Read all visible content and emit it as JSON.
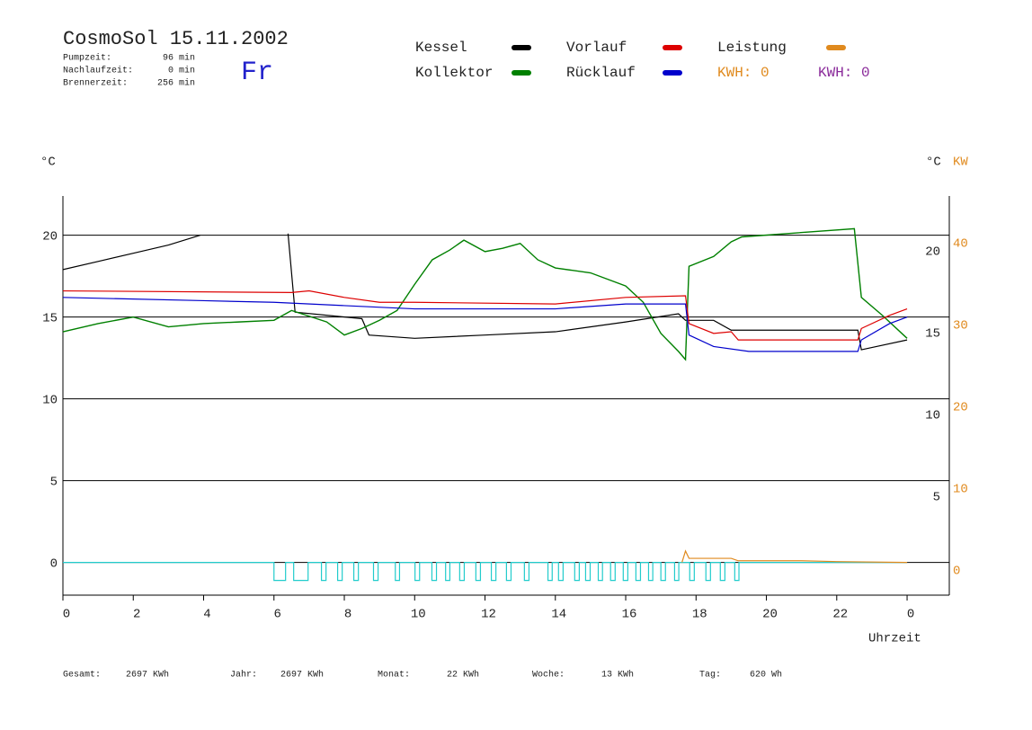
{
  "chart_data": {
    "type": "line",
    "title": "CosmoSol 15.11.2002",
    "day": "Fr",
    "stats": [
      {
        "label": "Pumpzeit:",
        "value": "96 min"
      },
      {
        "label": "Nachlaufzeit:",
        "value": "0 min"
      },
      {
        "label": "Brennerzeit:",
        "value": "256 min"
      }
    ],
    "y_unit": "°C",
    "y_unit_right": "°C",
    "y2_unit": "KW",
    "xlabel": "Uhrzeit",
    "xlim": [
      0,
      25.2
    ],
    "xticks": [
      0,
      2,
      4,
      6,
      8,
      10,
      12,
      14,
      16,
      18,
      20,
      22,
      {
        "value": 24,
        "label": "0"
      }
    ],
    "ylim": [
      -2,
      22.4
    ],
    "yticks": [
      0,
      5,
      10,
      15,
      20
    ],
    "yticks_right": [
      5,
      10,
      15,
      20
    ],
    "y2lim": [
      -4,
      44.8
    ],
    "y2ticks": [
      0,
      10,
      20,
      30,
      40
    ],
    "y2_color": "#e08a1e",
    "grid": true,
    "series": [
      {
        "name": "Kessel",
        "color": "#000000",
        "x": [
          0,
          1,
          2,
          3,
          3.9,
          5,
          6.4,
          6.6,
          8.5,
          8.7,
          10,
          12,
          14,
          16,
          17.5,
          17.7,
          18.5,
          19,
          22.6,
          22.7,
          24
        ],
        "values": [
          17.9,
          18.4,
          18.9,
          19.4,
          20.0,
          null,
          20.1,
          15.3,
          14.9,
          13.9,
          13.7,
          13.9,
          14.1,
          14.7,
          15.2,
          14.8,
          14.8,
          14.2,
          14.2,
          13.0,
          13.6
        ]
      },
      {
        "name": "Kollektor",
        "color": "#008000",
        "x": [
          0,
          1,
          2,
          3,
          4,
          5,
          6,
          6.5,
          7.5,
          8,
          8.5,
          9,
          9.5,
          10,
          10.5,
          11,
          11.4,
          12,
          12.5,
          13,
          13.5,
          14,
          15,
          16,
          16.5,
          17,
          17.5,
          17.7,
          17.8,
          18.5,
          19,
          19.3,
          22.5,
          22.7,
          23.3,
          24
        ],
        "values": [
          14.1,
          14.6,
          15.0,
          14.4,
          14.6,
          14.7,
          14.8,
          15.4,
          14.7,
          13.9,
          14.3,
          14.8,
          15.4,
          17.0,
          18.5,
          19.1,
          19.7,
          19.0,
          19.2,
          19.5,
          18.5,
          18.0,
          17.7,
          16.9,
          15.9,
          14.0,
          12.9,
          12.4,
          18.1,
          18.7,
          19.6,
          19.9,
          20.4,
          16.2,
          15.1,
          13.7
        ]
      },
      {
        "name": "Vorlauf",
        "color": "#dd0000",
        "x": [
          0,
          6.5,
          7,
          8,
          9,
          10,
          14,
          16,
          17.7,
          17.8,
          18.5,
          19,
          19.2,
          22.6,
          22.7,
          23.5,
          24
        ],
        "values": [
          16.6,
          16.5,
          16.6,
          16.2,
          15.9,
          15.9,
          15.8,
          16.2,
          16.3,
          14.6,
          14.0,
          14.1,
          13.6,
          13.6,
          14.3,
          15.1,
          15.5
        ]
      },
      {
        "name": "Rücklauf",
        "color": "#0000cc",
        "x": [
          0,
          4,
          6,
          8,
          10,
          14,
          16,
          17.7,
          17.8,
          18.5,
          19.5,
          22.6,
          22.7,
          23.5,
          24
        ],
        "values": [
          16.2,
          16.0,
          15.9,
          15.7,
          15.5,
          15.5,
          15.8,
          15.8,
          13.9,
          13.2,
          12.9,
          12.9,
          13.6,
          14.6,
          15.0
        ]
      },
      {
        "name": "Leistung",
        "color": "#e08a1e",
        "axis": "y2",
        "x": [
          17.6,
          17.7,
          17.8,
          19,
          19.2,
          21,
          22,
          24
        ],
        "values": [
          0,
          1.4,
          0.5,
          0.5,
          0.2,
          0.2,
          0.1,
          0
        ]
      }
    ],
    "pump": {
      "color": "#22cccc",
      "level": -1.1,
      "intervals": [
        [
          6.0,
          6.33
        ],
        [
          6.56,
          6.97
        ],
        [
          7.35,
          7.48
        ],
        [
          7.81,
          7.94
        ],
        [
          8.27,
          8.4
        ],
        [
          8.83,
          8.96
        ],
        [
          9.45,
          9.57
        ],
        [
          10.01,
          10.14
        ],
        [
          10.49,
          10.62
        ],
        [
          10.88,
          11.0
        ],
        [
          11.28,
          11.41
        ],
        [
          11.74,
          11.87
        ],
        [
          12.18,
          12.31
        ],
        [
          12.61,
          12.74
        ],
        [
          13.12,
          13.25
        ],
        [
          13.79,
          13.91
        ],
        [
          14.09,
          14.22
        ],
        [
          14.55,
          14.68
        ],
        [
          14.86,
          14.99
        ],
        [
          15.22,
          15.34
        ],
        [
          15.57,
          15.7
        ],
        [
          15.93,
          16.06
        ],
        [
          16.29,
          16.42
        ],
        [
          16.65,
          16.77
        ],
        [
          17.0,
          17.13
        ],
        [
          17.39,
          17.51
        ],
        [
          17.82,
          17.95
        ],
        [
          18.28,
          18.41
        ],
        [
          18.69,
          18.82
        ],
        [
          19.1,
          19.22
        ]
      ]
    },
    "kwh": [
      {
        "text": "KWH: 0",
        "color": "#e08a1e"
      },
      {
        "text": "KWH: 0",
        "color": "#8a2a9a"
      }
    ],
    "totals": [
      {
        "label": "Gesamt:",
        "value": "2697 KWh"
      },
      {
        "label": "Jahr:",
        "value": "2697 KWh"
      },
      {
        "label": "Monat:",
        "value": "22 KWh"
      },
      {
        "label": "Woche:",
        "value": "13 KWh"
      },
      {
        "label": "Tag:",
        "value": "620 Wh"
      }
    ]
  }
}
